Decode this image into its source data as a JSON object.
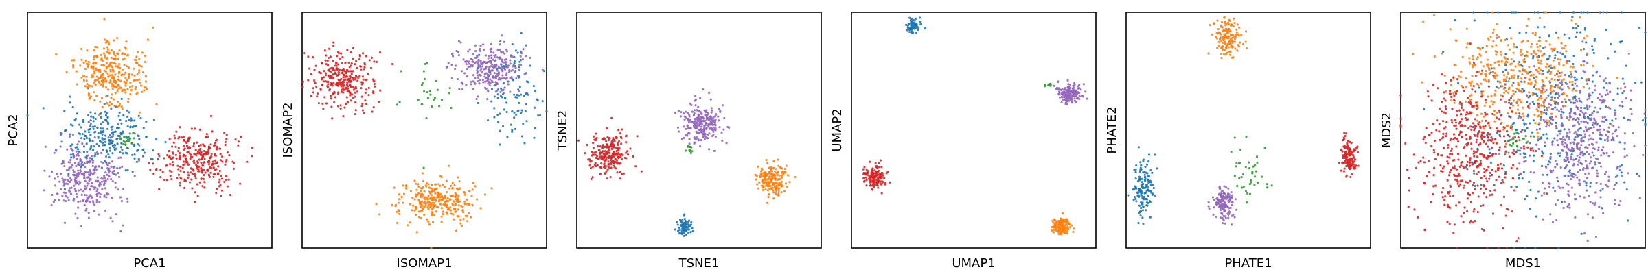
{
  "figure": {
    "point_radius": 1.6,
    "point_opacity": 0.9
  },
  "colors": {
    "blue": "#1f77b4",
    "orange": "#ff7f0e",
    "green": "#2ca02c",
    "red": "#d62728",
    "purple": "#9467bd"
  },
  "chart_data": [
    {
      "type": "scatter",
      "xlabel": "PCA1",
      "ylabel": "PCA2",
      "xticks": [],
      "yticks": [],
      "grid": false,
      "xlim": [
        0,
        100
      ],
      "ylim": [
        0,
        100
      ],
      "clusters": [
        {
          "color": "#1f77b4",
          "n": 260,
          "cx": 33,
          "cy": 46,
          "sx": 9,
          "sy": 7
        },
        {
          "color": "#ff7f0e",
          "n": 320,
          "cx": 34,
          "cy": 74,
          "sx": 7,
          "sy": 7
        },
        {
          "color": "#2ca02c",
          "n": 20,
          "cx": 40,
          "cy": 46,
          "sx": 2,
          "sy": 2
        },
        {
          "color": "#d62728",
          "n": 320,
          "cx": 70,
          "cy": 37,
          "sx": 7,
          "sy": 6
        },
        {
          "color": "#9467bd",
          "n": 320,
          "cx": 24,
          "cy": 30,
          "sx": 7,
          "sy": 8
        }
      ]
    },
    {
      "type": "scatter",
      "xlabel": "ISOMAP1",
      "ylabel": "ISOMAP2",
      "xticks": [],
      "yticks": [],
      "grid": false,
      "xlim": [
        0,
        100
      ],
      "ylim": [
        0,
        100
      ],
      "clusters": [
        {
          "color": "#1f77b4",
          "n": 110,
          "cx": 86,
          "cy": 68,
          "sx": 6,
          "sy": 11
        },
        {
          "color": "#ff7f0e",
          "n": 300,
          "cx": 55,
          "cy": 20,
          "sx": 8,
          "sy": 5
        },
        {
          "color": "#2ca02c",
          "n": 30,
          "cx": 52,
          "cy": 66,
          "sx": 6,
          "sy": 8
        },
        {
          "color": "#d62728",
          "n": 300,
          "cx": 17,
          "cy": 72,
          "sx": 6,
          "sy": 6
        },
        {
          "color": "#9467bd",
          "n": 280,
          "cx": 77,
          "cy": 76,
          "sx": 7,
          "sy": 5
        }
      ]
    },
    {
      "type": "scatter",
      "xlabel": "TSNE1",
      "ylabel": "TSNE2",
      "xticks": [],
      "yticks": [],
      "grid": false,
      "xlim": [
        0,
        100
      ],
      "ylim": [
        0,
        100
      ],
      "clusters": [
        {
          "color": "#1f77b4",
          "n": 80,
          "cx": 44,
          "cy": 9,
          "sx": 1.6,
          "sy": 1.8
        },
        {
          "color": "#ff7f0e",
          "n": 180,
          "cx": 80,
          "cy": 29,
          "sx": 3.2,
          "sy": 3.2
        },
        {
          "color": "#2ca02c",
          "n": 12,
          "cx": 46,
          "cy": 42,
          "sx": 0.8,
          "sy": 1.2
        },
        {
          "color": "#d62728",
          "n": 240,
          "cx": 13,
          "cy": 40,
          "sx": 4,
          "sy": 4
        },
        {
          "color": "#9467bd",
          "n": 240,
          "cx": 51,
          "cy": 53,
          "sx": 4,
          "sy": 4.5
        }
      ]
    },
    {
      "type": "scatter",
      "xlabel": "UMAP1",
      "ylabel": "UMAP2",
      "xticks": [],
      "yticks": [],
      "grid": false,
      "xlim": [
        0,
        100
      ],
      "ylim": [
        0,
        100
      ],
      "clusters": [
        {
          "color": "#1f77b4",
          "n": 70,
          "cx": 25,
          "cy": 94,
          "sx": 1.3,
          "sy": 1.3
        },
        {
          "color": "#ff7f0e",
          "n": 120,
          "cx": 86,
          "cy": 9,
          "sx": 1.8,
          "sy": 2
        },
        {
          "color": "#2ca02c",
          "n": 10,
          "cx": 80,
          "cy": 69,
          "sx": 1.2,
          "sy": 0.6
        },
        {
          "color": "#d62728",
          "n": 140,
          "cx": 10,
          "cy": 30,
          "sx": 2.2,
          "sy": 2.4
        },
        {
          "color": "#9467bd",
          "n": 160,
          "cx": 89,
          "cy": 66,
          "sx": 2.6,
          "sy": 2.2
        }
      ]
    },
    {
      "type": "scatter",
      "xlabel": "PHATE1",
      "ylabel": "PHATE2",
      "xticks": [],
      "yticks": [],
      "grid": false,
      "xlim": [
        0,
        100
      ],
      "ylim": [
        0,
        100
      ],
      "clusters": [
        {
          "color": "#1f77b4",
          "n": 140,
          "cx": 7,
          "cy": 25,
          "sx": 2,
          "sy": 6
        },
        {
          "color": "#ff7f0e",
          "n": 140,
          "cx": 42,
          "cy": 89,
          "sx": 3,
          "sy": 4
        },
        {
          "color": "#2ca02c",
          "n": 40,
          "cx": 51,
          "cy": 32,
          "sx": 4,
          "sy": 7
        },
        {
          "color": "#d62728",
          "n": 140,
          "cx": 91,
          "cy": 39,
          "sx": 1.6,
          "sy": 4
        },
        {
          "color": "#9467bd",
          "n": 150,
          "cx": 40,
          "cy": 19,
          "sx": 2,
          "sy": 3.5
        }
      ]
    },
    {
      "type": "scatter",
      "xlabel": "MDS1",
      "ylabel": "MDS2",
      "xticks": [],
      "yticks": [],
      "grid": false,
      "xlim": [
        0,
        100
      ],
      "ylim": [
        0,
        100
      ],
      "clusters": [
        {
          "color": "#1f77b4",
          "n": 420,
          "cx": 62,
          "cy": 60,
          "sx": 18,
          "sy": 22
        },
        {
          "color": "#ff7f0e",
          "n": 440,
          "cx": 47,
          "cy": 72,
          "sx": 14,
          "sy": 11
        },
        {
          "color": "#2ca02c",
          "n": 20,
          "cx": 48,
          "cy": 48,
          "sx": 3,
          "sy": 3
        },
        {
          "color": "#d62728",
          "n": 480,
          "cx": 28,
          "cy": 42,
          "sx": 11,
          "sy": 16
        },
        {
          "color": "#9467bd",
          "n": 480,
          "cx": 73,
          "cy": 46,
          "sx": 11,
          "sy": 16
        }
      ]
    }
  ]
}
